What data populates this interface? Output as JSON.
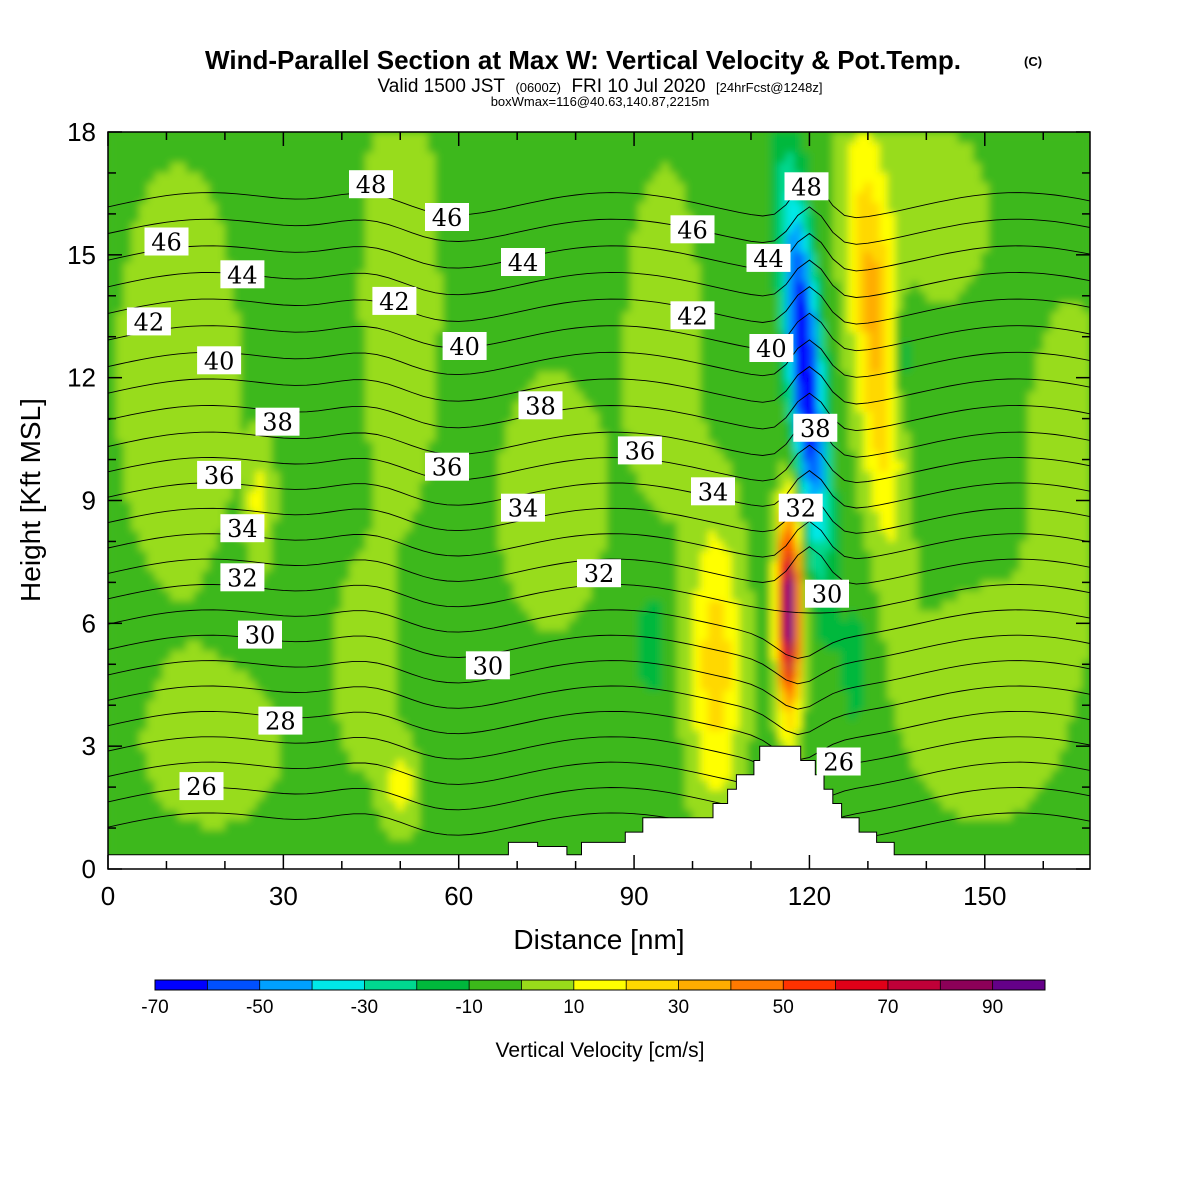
{
  "title": {
    "main": "Wind-Parallel Section at Max W: Vertical Velocity & Pot.Temp.",
    "copyright": "(C)",
    "valid_prefix": "Valid 1500 JST",
    "valid_utc": "(0600Z)",
    "valid_date": "FRI 10 Jul 2020",
    "forecast": "[24hrFcst@1248z]",
    "box": "boxWmax=116@40.63,140.87,2215m"
  },
  "chart_data": {
    "type": "heatmap",
    "title": "Wind-Parallel Section at Max W: Vertical Velocity & Pot.Temp.",
    "xlabel": "Distance [nm]",
    "ylabel": "Height [Kft MSL]",
    "xlim": [
      0,
      168
    ],
    "ylim": [
      0,
      18
    ],
    "x_ticks": [
      0,
      30,
      60,
      90,
      120,
      150
    ],
    "y_ticks": [
      0,
      3,
      6,
      9,
      12,
      15,
      18
    ],
    "grid": false,
    "colorbar": {
      "title": "Vertical Velocity [cm/s]",
      "bounds": [
        -70,
        -60,
        -50,
        -40,
        -30,
        -20,
        -10,
        0,
        10,
        20,
        30,
        40,
        50,
        60,
        70,
        80,
        90,
        100
      ],
      "tick_labels": [
        "-70",
        "-50",
        "-30",
        "-10",
        "10",
        "30",
        "50",
        "70",
        "90"
      ],
      "colors": [
        "#0000ff",
        "#0050ff",
        "#00a0ff",
        "#00e8e8",
        "#00d890",
        "#00b83c",
        "#3cb81a",
        "#98dc1a",
        "#ffff00",
        "#ffd800",
        "#ffac00",
        "#ff7a00",
        "#ff3200",
        "#e00018",
        "#c00038",
        "#8c0058",
        "#640088"
      ]
    },
    "max_updraft": {
      "x": 116,
      "z": 6.5,
      "w": 116
    },
    "terrain": [
      [
        0,
        0.35
      ],
      [
        68.5,
        0.35
      ],
      [
        68.5,
        0.65
      ],
      [
        73.5,
        0.65
      ],
      [
        73.5,
        0.55
      ],
      [
        78.5,
        0.55
      ],
      [
        78.5,
        0.35
      ],
      [
        81,
        0.35
      ],
      [
        81,
        0.65
      ],
      [
        88.5,
        0.65
      ],
      [
        88.5,
        0.9
      ],
      [
        91.5,
        0.9
      ],
      [
        91.5,
        1.25
      ],
      [
        103.5,
        1.25
      ],
      [
        103.5,
        1.6
      ],
      [
        106,
        1.6
      ],
      [
        106,
        1.95
      ],
      [
        107.5,
        1.95
      ],
      [
        107.5,
        2.3
      ],
      [
        110.5,
        2.3
      ],
      [
        110.5,
        2.65
      ],
      [
        111.5,
        2.65
      ],
      [
        111.5,
        3.0
      ],
      [
        118.5,
        3.0
      ],
      [
        118.5,
        2.65
      ],
      [
        121,
        2.65
      ],
      [
        121,
        2.3
      ],
      [
        122.5,
        2.3
      ],
      [
        122.5,
        1.95
      ],
      [
        124,
        1.95
      ],
      [
        124,
        1.6
      ],
      [
        125.5,
        1.6
      ],
      [
        125.5,
        1.25
      ],
      [
        128.5,
        1.25
      ],
      [
        128.5,
        0.9
      ],
      [
        131.5,
        0.9
      ],
      [
        131.5,
        0.65
      ],
      [
        134.5,
        0.65
      ],
      [
        134.5,
        0.35
      ],
      [
        168,
        0.35
      ]
    ],
    "theta_contours": {
      "interval": 1,
      "labeled": [
        {
          "value": 48,
          "x": 45,
          "z": 16.7
        },
        {
          "value": 48,
          "x": 119.5,
          "z": 16.65
        },
        {
          "value": 46,
          "x": 10,
          "z": 15.3
        },
        {
          "value": 46,
          "x": 58,
          "z": 15.9
        },
        {
          "value": 46,
          "x": 100,
          "z": 15.6
        },
        {
          "value": 44,
          "x": 23,
          "z": 14.5
        },
        {
          "value": 44,
          "x": 71,
          "z": 14.8
        },
        {
          "value": 44,
          "x": 113,
          "z": 14.9
        },
        {
          "value": 42,
          "x": 7,
          "z": 13.35
        },
        {
          "value": 42,
          "x": 49,
          "z": 13.85
        },
        {
          "value": 42,
          "x": 100,
          "z": 13.5
        },
        {
          "value": 40,
          "x": 19,
          "z": 12.4
        },
        {
          "value": 40,
          "x": 61,
          "z": 12.75
        },
        {
          "value": 40,
          "x": 113.5,
          "z": 12.7
        },
        {
          "value": 38,
          "x": 29,
          "z": 10.9
        },
        {
          "value": 38,
          "x": 74,
          "z": 11.3
        },
        {
          "value": 38,
          "x": 121,
          "z": 10.75
        },
        {
          "value": 36,
          "x": 19,
          "z": 9.6
        },
        {
          "value": 36,
          "x": 58,
          "z": 9.8
        },
        {
          "value": 36,
          "x": 91,
          "z": 10.2
        },
        {
          "value": 34,
          "x": 23,
          "z": 8.3
        },
        {
          "value": 34,
          "x": 71,
          "z": 8.8
        },
        {
          "value": 34,
          "x": 103.5,
          "z": 9.2
        },
        {
          "value": 32,
          "x": 23,
          "z": 7.1
        },
        {
          "value": 32,
          "x": 84,
          "z": 7.2
        },
        {
          "value": 32,
          "x": 118.5,
          "z": 8.8
        },
        {
          "value": 30,
          "x": 26,
          "z": 5.7
        },
        {
          "value": 30,
          "x": 65,
          "z": 4.95
        },
        {
          "value": 30,
          "x": 123,
          "z": 6.7
        },
        {
          "value": 28,
          "x": 29.5,
          "z": 3.6
        },
        {
          "value": 26,
          "x": 16,
          "z": 2.0
        },
        {
          "value": 26,
          "x": 125,
          "z": 2.6
        }
      ]
    }
  }
}
